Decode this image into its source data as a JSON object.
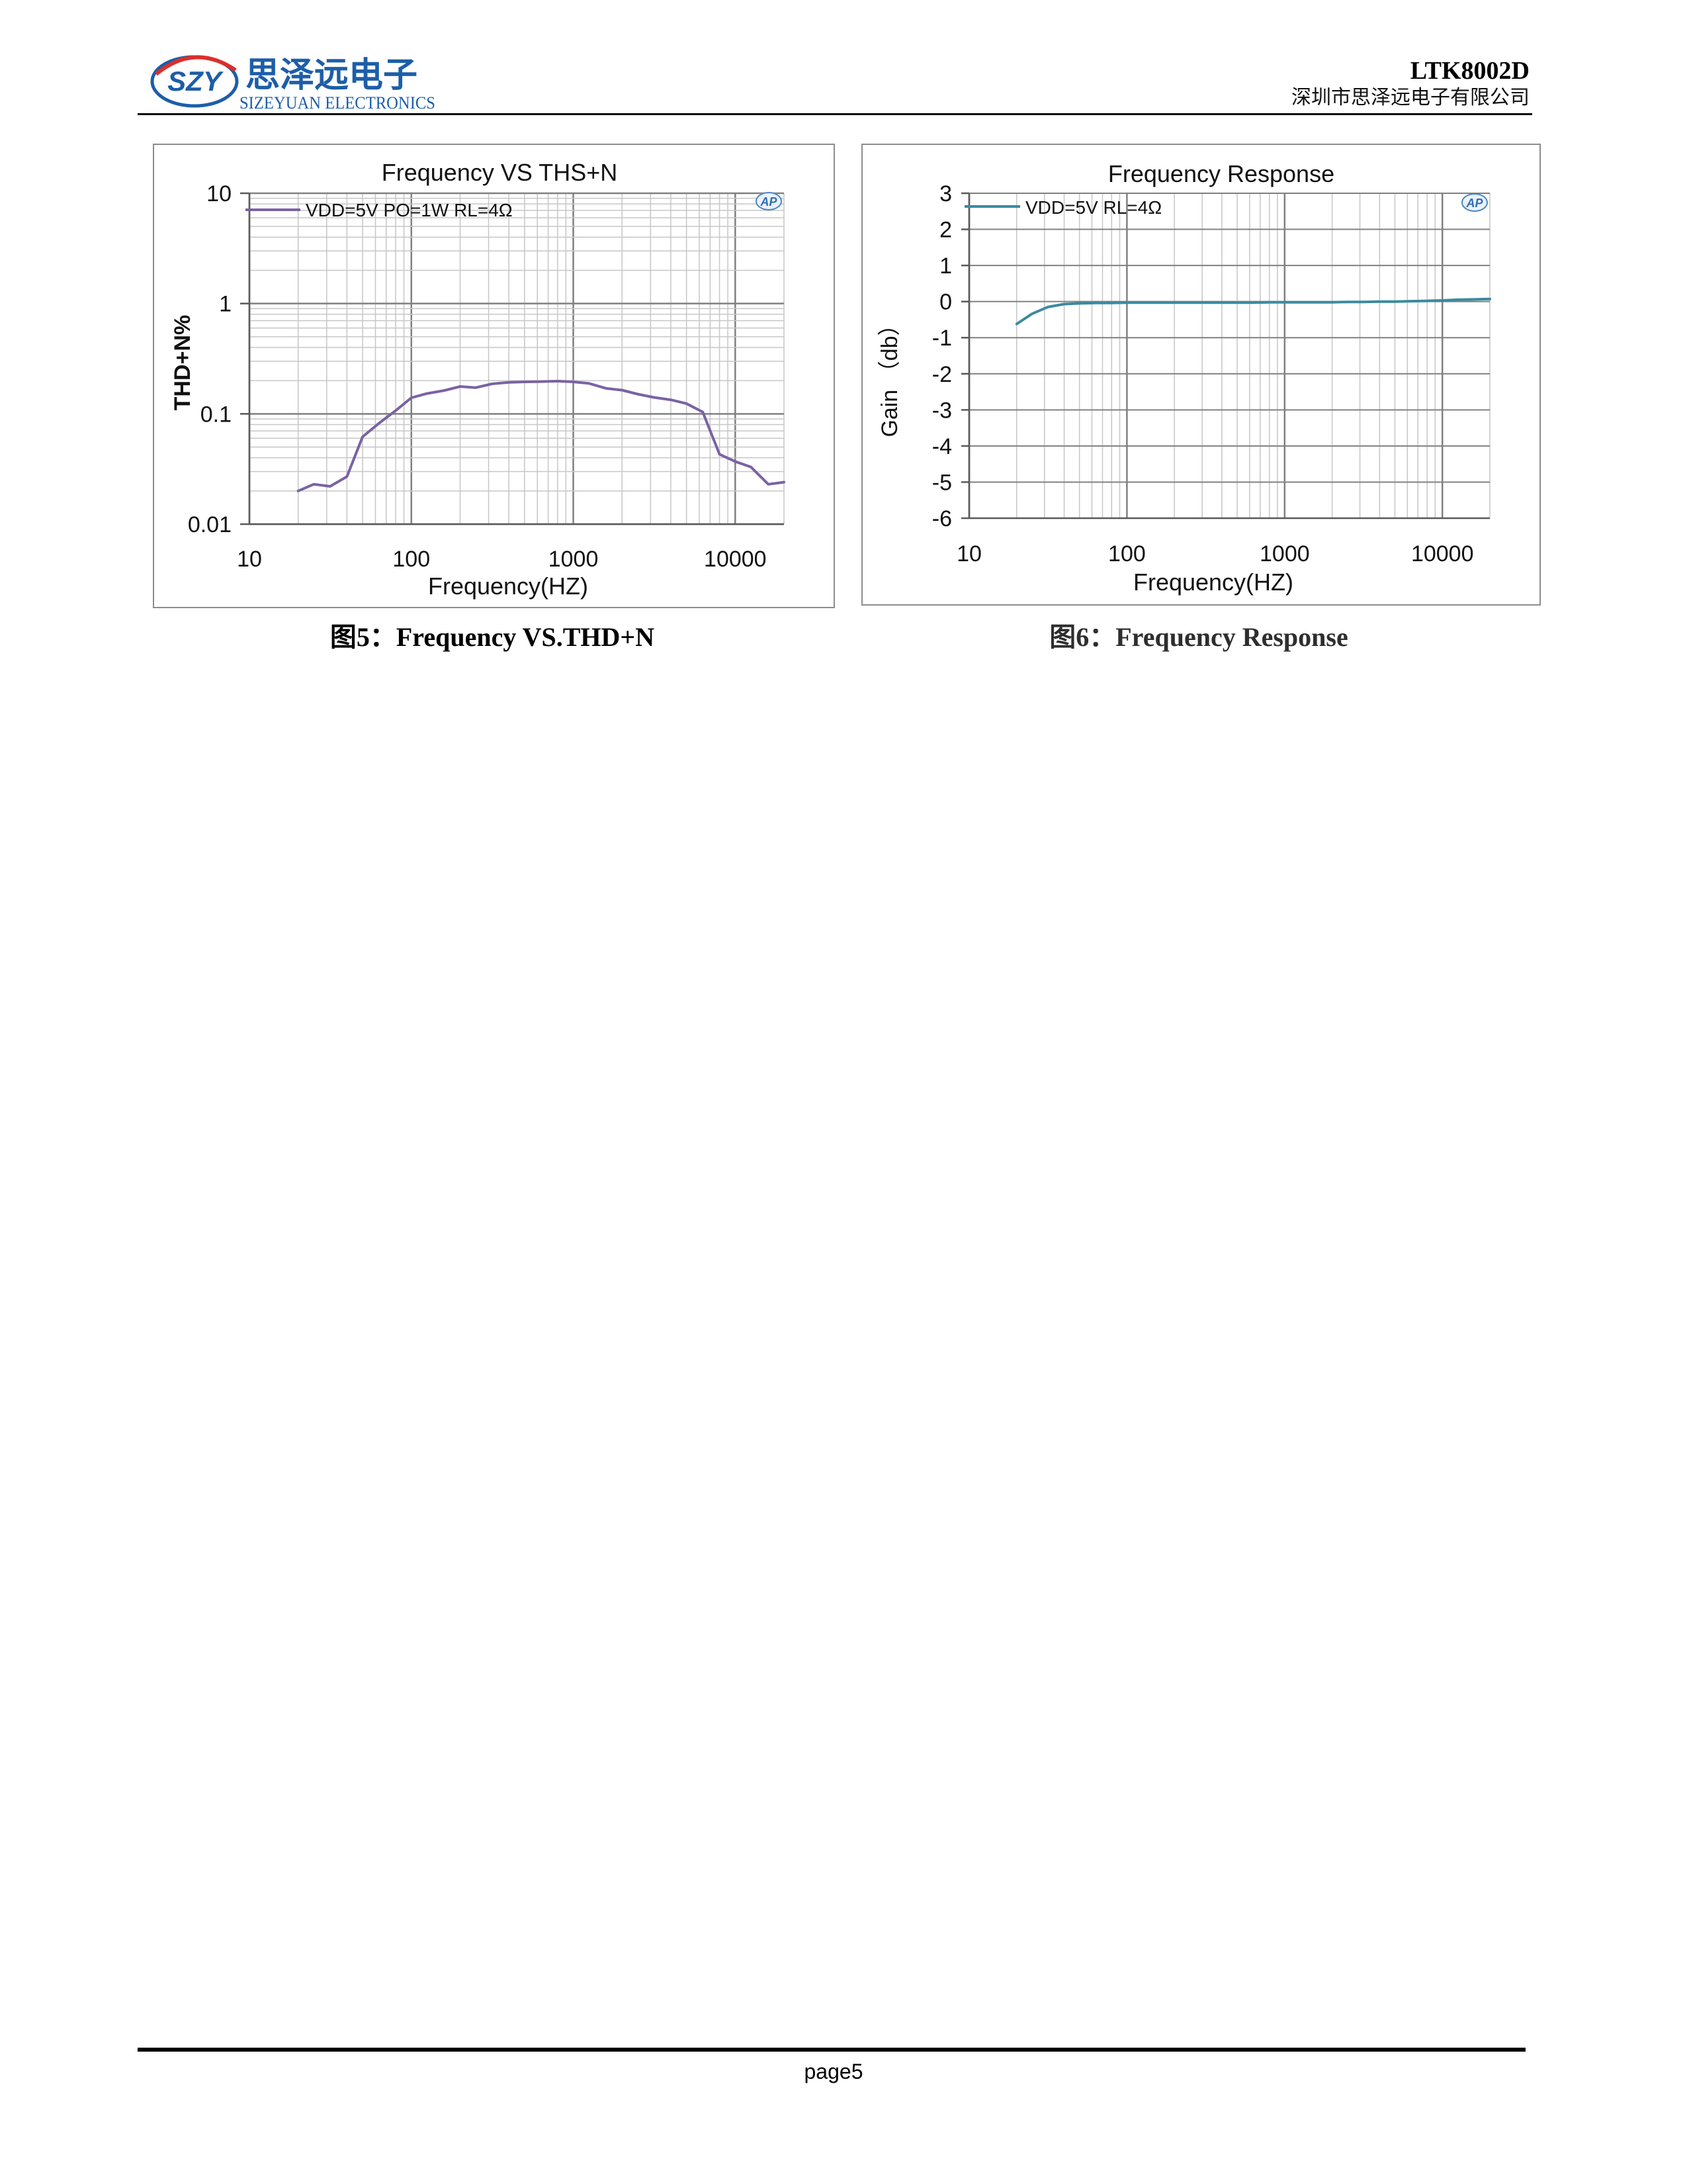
{
  "header": {
    "logo": {
      "mark_text": "SZY",
      "cn_name": "思泽远电子",
      "en_name": "SIZEYUAN ELECTRONICS"
    },
    "part_number": "LTK8002D",
    "company": "深圳市思泽远电子有限公司"
  },
  "colors": {
    "brand_blue": "#1d5ea8",
    "brand_red": "#d9302c",
    "grid_major": "#808080",
    "grid_minor": "#c6c6c6",
    "axis": "#595959"
  },
  "chart_data": [
    {
      "type": "line",
      "title": "Frequency VS THS+N",
      "xlabel": "Frequency(HZ)",
      "ylabel": "THD+N%",
      "x_scale": "log",
      "y_scale": "log",
      "xlim": [
        10,
        20000
      ],
      "ylim": [
        0.01,
        10
      ],
      "x_ticks": [
        10,
        100,
        1000,
        10000
      ],
      "x_tick_labels": [
        "10",
        "100",
        "1000",
        "10000"
      ],
      "y_ticks": [
        10,
        1,
        0.1,
        0.01
      ],
      "y_tick_labels": [
        "10",
        "1",
        "0.1",
        "0.01"
      ],
      "grid": true,
      "legend": "top-left",
      "logo_text": "AP",
      "x": [
        20,
        25,
        31.5,
        40,
        50,
        63,
        80,
        100,
        125,
        160,
        200,
        250,
        315,
        400,
        500,
        630,
        800,
        1000,
        1250,
        1600,
        2000,
        2500,
        3150,
        4000,
        5000,
        6300,
        8000,
        10000,
        12500,
        16000,
        20000
      ],
      "series": [
        {
          "name": "VDD=5V PO=1W RL=4Ω",
          "color": "#7a62a3",
          "y": [
            0.02,
            0.023,
            0.022,
            0.027,
            0.062,
            0.082,
            0.107,
            0.14,
            0.153,
            0.163,
            0.177,
            0.173,
            0.187,
            0.193,
            0.195,
            0.196,
            0.198,
            0.195,
            0.189,
            0.17,
            0.164,
            0.151,
            0.141,
            0.134,
            0.124,
            0.104,
            0.043,
            0.037,
            0.033,
            0.023,
            0.024
          ]
        }
      ]
    },
    {
      "type": "line",
      "title": "Frequency Response",
      "xlabel": "Frequency(HZ)",
      "ylabel": "Gain （db）",
      "x_scale": "log",
      "y_scale": "linear",
      "xlim": [
        10,
        20000
      ],
      "ylim": [
        -6,
        3
      ],
      "x_ticks": [
        10,
        100,
        1000,
        10000
      ],
      "x_tick_labels": [
        "10",
        "100",
        "1000",
        "10000"
      ],
      "y_ticks": [
        3,
        2,
        1,
        0,
        -1,
        -2,
        -3,
        -4,
        -5,
        -6
      ],
      "y_tick_labels": [
        "3",
        "2",
        "1",
        "0",
        "-1",
        "-2",
        "-3",
        "-4",
        "-5",
        "-6"
      ],
      "grid": true,
      "legend": "top-left",
      "logo_text": "AP",
      "x": [
        20,
        25,
        31.5,
        40,
        50,
        63,
        80,
        100,
        125,
        160,
        200,
        250,
        315,
        400,
        500,
        630,
        800,
        1000,
        1250,
        1600,
        2000,
        2500,
        3150,
        4000,
        5000,
        6300,
        8000,
        10000,
        12500,
        16000,
        20000
      ],
      "series": [
        {
          "name": "VDD=5V RL=4Ω",
          "color": "#3b8aa0",
          "y": [
            -0.62,
            -0.34,
            -0.15,
            -0.07,
            -0.05,
            -0.04,
            -0.04,
            -0.03,
            -0.03,
            -0.03,
            -0.03,
            -0.03,
            -0.03,
            -0.03,
            -0.03,
            -0.03,
            -0.02,
            -0.02,
            -0.02,
            -0.02,
            -0.02,
            -0.01,
            -0.01,
            0.0,
            0.0,
            0.01,
            0.02,
            0.03,
            0.05,
            0.06,
            0.07
          ]
        }
      ]
    }
  ],
  "captions": [
    "图5：Frequency VS.THD+N",
    "图6：Frequency Response"
  ],
  "footer": {
    "page_label": "page5"
  }
}
